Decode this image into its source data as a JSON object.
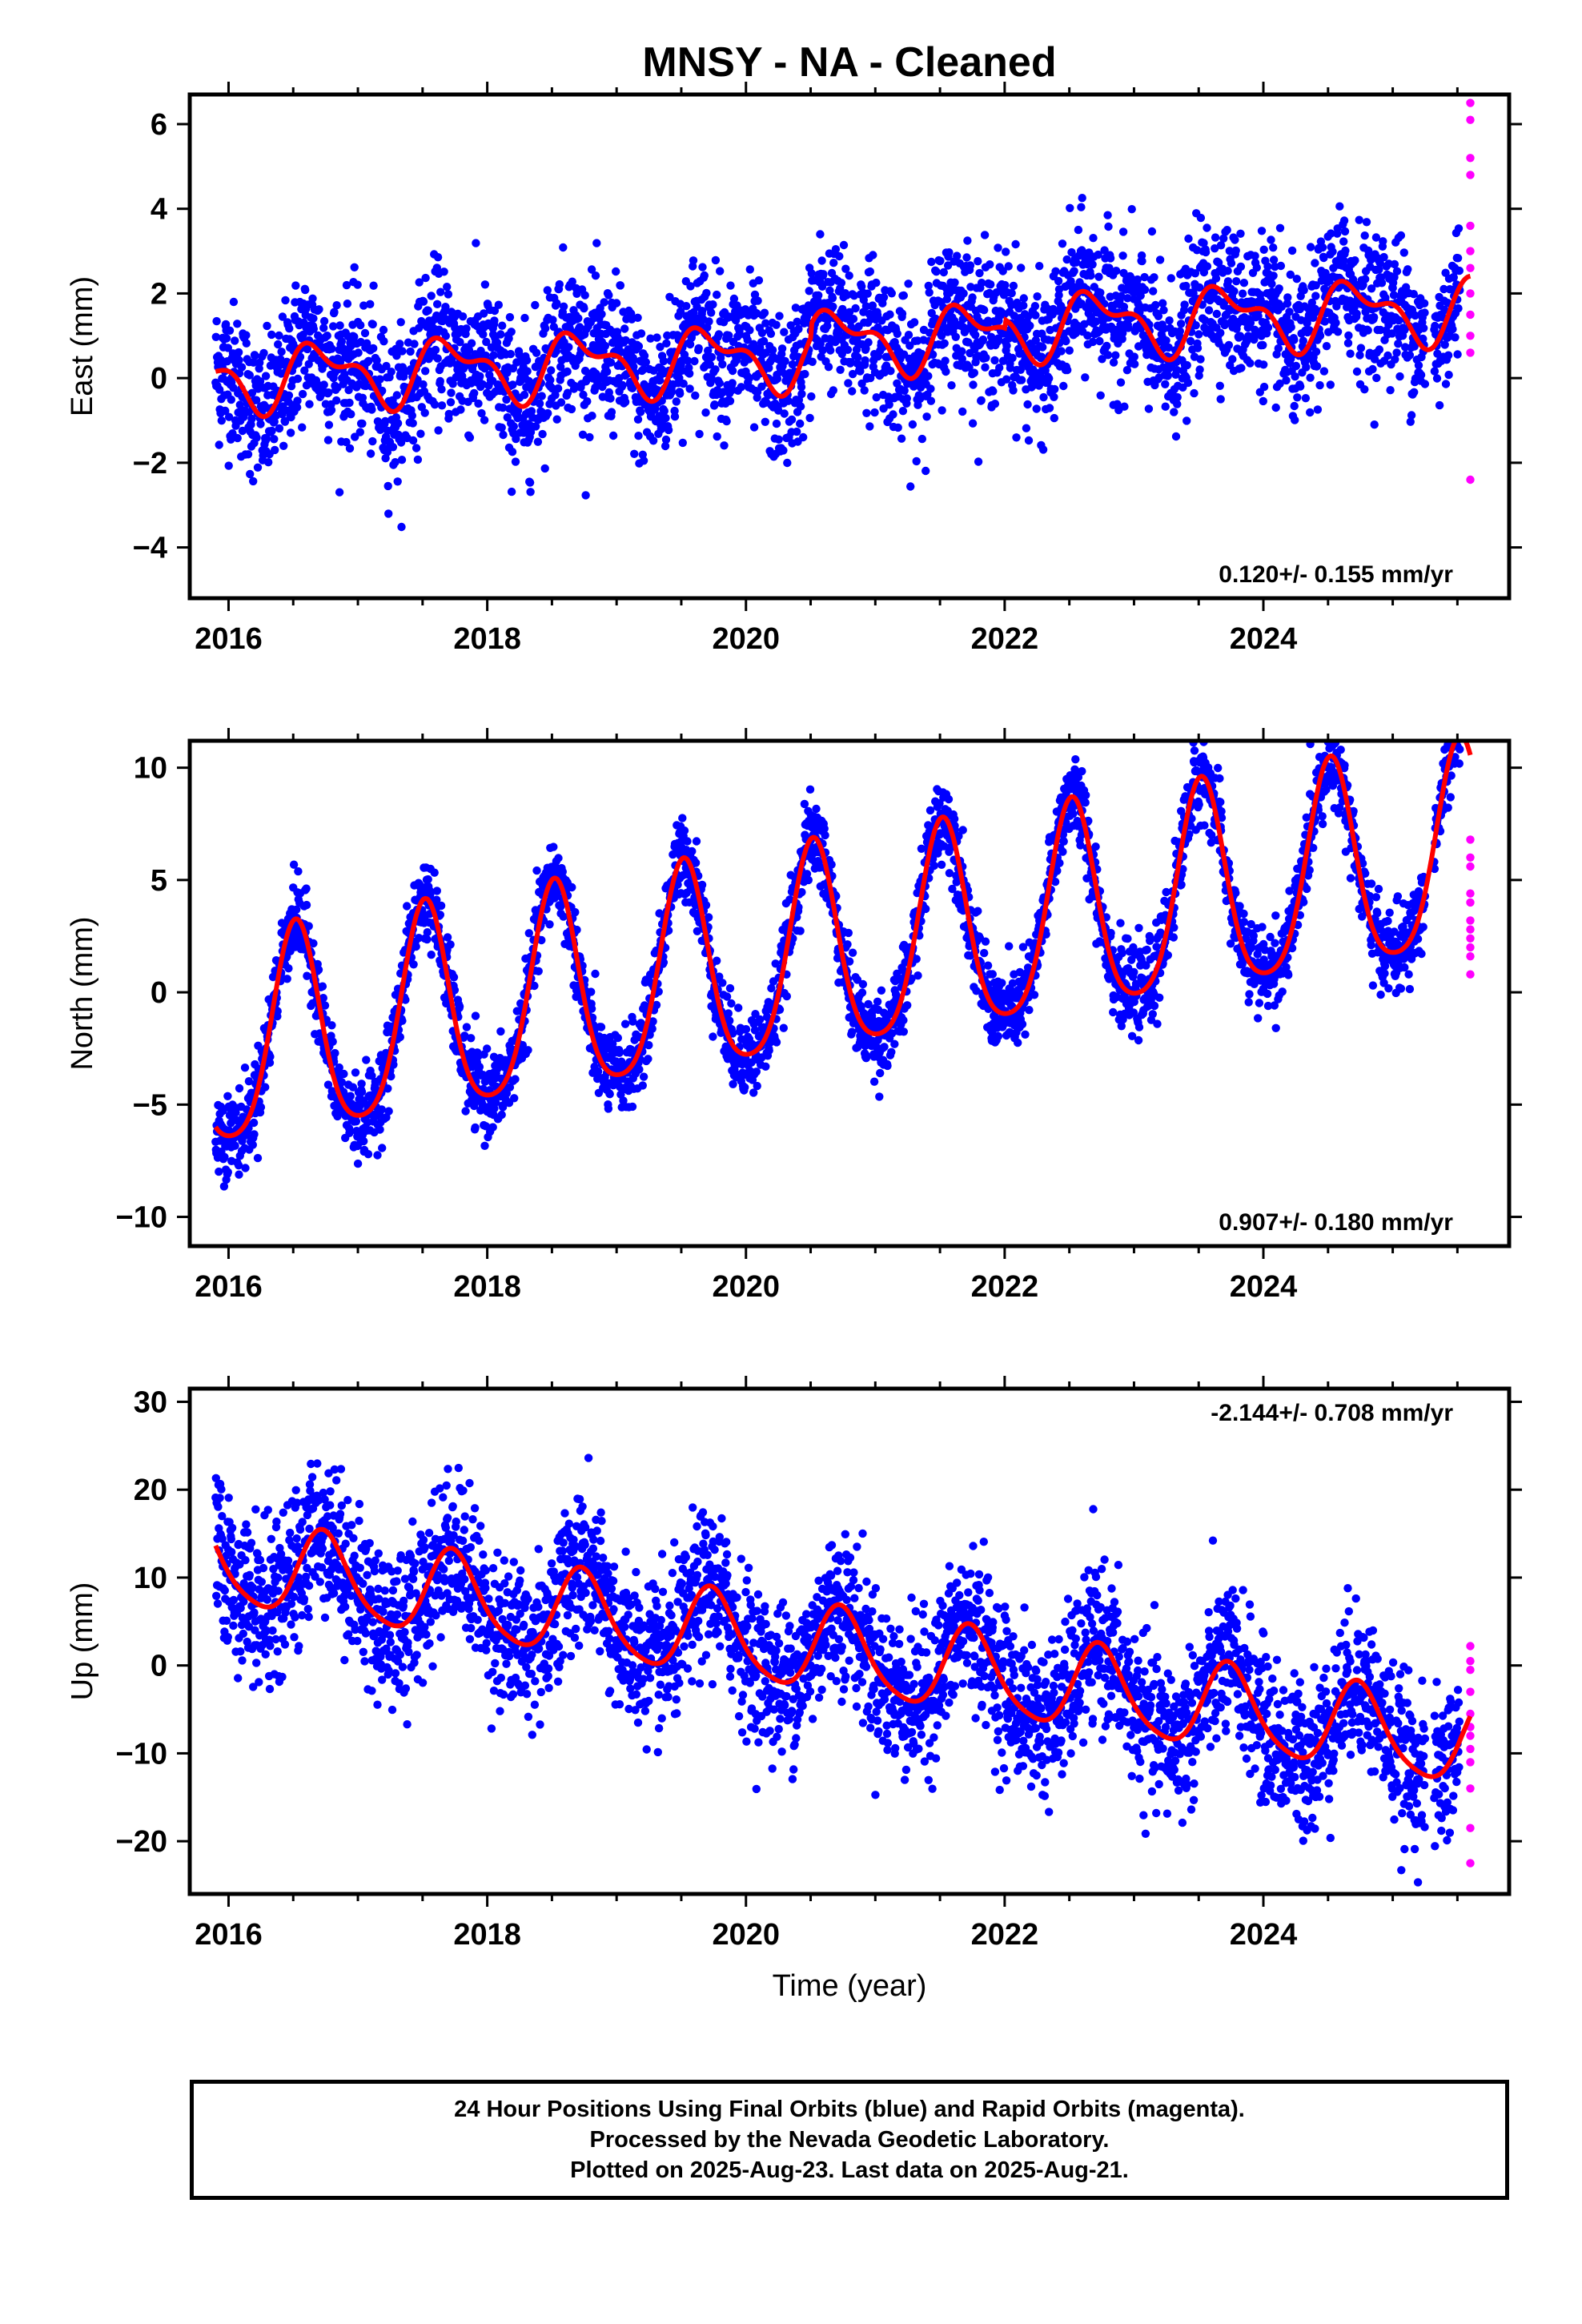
{
  "title": "MNSY  - NA - Cleaned",
  "xlabel": "Time (year)",
  "colors": {
    "final": "#0000ff",
    "rapid": "#ff00ff",
    "model": "#ff0000"
  },
  "chart_data": [
    {
      "type": "scatter",
      "panel": "east",
      "ylabel": "East (mm)",
      "xlim": [
        2015.7,
        2025.9
      ],
      "ylim": [
        -5.2,
        6.7
      ],
      "xticks": [
        2016,
        2018,
        2020,
        2022,
        2024
      ],
      "yticks": [
        -4,
        -2,
        0,
        2,
        4,
        6
      ],
      "annotation": "0.120+/- 0.155 mm/yr",
      "model": {
        "mean": 0.0,
        "trend": 0.12,
        "amp1": 0.65,
        "phase1": 0.72,
        "amp2": 0.35,
        "phase2": 0.55,
        "start": 2015.9,
        "end": 2025.6,
        "step_at": [
          2020.5,
          2022.0
        ],
        "step": [
          0.3,
          0.2
        ]
      },
      "noise": 0.85,
      "rapid_points": [
        [
          2025.6,
          6.5
        ],
        [
          2025.6,
          6.1
        ],
        [
          2025.6,
          5.2
        ],
        [
          2025.6,
          4.8
        ],
        [
          2025.6,
          3.6
        ],
        [
          2025.6,
          3.0
        ],
        [
          2025.6,
          2.6
        ],
        [
          2025.6,
          2.0
        ],
        [
          2025.6,
          1.5
        ],
        [
          2025.6,
          1.0
        ],
        [
          2025.6,
          0.6
        ],
        [
          2025.6,
          -2.4
        ]
      ]
    },
    {
      "type": "scatter",
      "panel": "north",
      "ylabel": "North (mm)",
      "xlim": [
        2015.7,
        2025.9
      ],
      "ylim": [
        -11.3,
        11.2
      ],
      "xticks": [
        2016,
        2018,
        2020,
        2022,
        2024
      ],
      "yticks": [
        -10,
        -5,
        0,
        5,
        10
      ],
      "annotation": "0.907+/- 0.180 mm/yr",
      "model": {
        "mean": -2.6,
        "trend": 0.907,
        "amp1": 4.6,
        "phase1": 0.52,
        "amp2": 0.8,
        "phase2": 0.52,
        "start": 2015.9,
        "end": 2025.6,
        "step_at": [],
        "step": []
      },
      "noise": 0.9,
      "rapid_points": [
        [
          2025.6,
          6.8
        ],
        [
          2025.6,
          6.0
        ],
        [
          2025.6,
          5.6
        ],
        [
          2025.6,
          4.4
        ],
        [
          2025.6,
          4.0
        ],
        [
          2025.6,
          3.2
        ],
        [
          2025.6,
          2.8
        ],
        [
          2025.6,
          2.4
        ],
        [
          2025.6,
          2.0
        ],
        [
          2025.6,
          1.6
        ],
        [
          2025.6,
          0.8
        ]
      ]
    },
    {
      "type": "scatter",
      "panel": "up",
      "ylabel": "Up (mm)",
      "xlim": [
        2015.7,
        2025.9
      ],
      "ylim": [
        -26,
        31.5
      ],
      "xticks": [
        2016,
        2018,
        2020,
        2022,
        2024
      ],
      "yticks": [
        -20,
        -10,
        0,
        10,
        20,
        30
      ],
      "annotation": "-2.144+/- 0.708 mm/yr",
      "model": {
        "mean": 11.5,
        "trend": -2.144,
        "amp1": 4.8,
        "phase1": 0.74,
        "amp2": 0.8,
        "phase2": 0.7,
        "start": 2015.9,
        "end": 2025.6,
        "step_at": [],
        "step": []
      },
      "noise": 4.3,
      "rapid_points": [
        [
          2025.6,
          2.2
        ],
        [
          2025.6,
          0.5
        ],
        [
          2025.6,
          -0.5
        ],
        [
          2025.6,
          -3.0
        ],
        [
          2025.6,
          -5.5
        ],
        [
          2025.6,
          -7.0
        ],
        [
          2025.6,
          -8.0
        ],
        [
          2025.6,
          -9.5
        ],
        [
          2025.6,
          -11.0
        ],
        [
          2025.6,
          -14.0
        ],
        [
          2025.6,
          -18.5
        ],
        [
          2025.6,
          -22.5
        ]
      ]
    }
  ],
  "footer": {
    "line1": "24 Hour Positions Using Final Orbits (blue) and Rapid Orbits (magenta).",
    "line2": "Processed by the Nevada Geodetic Laboratory.",
    "line3": "Plotted on 2025-Aug-23. Last data on 2025-Aug-21."
  }
}
